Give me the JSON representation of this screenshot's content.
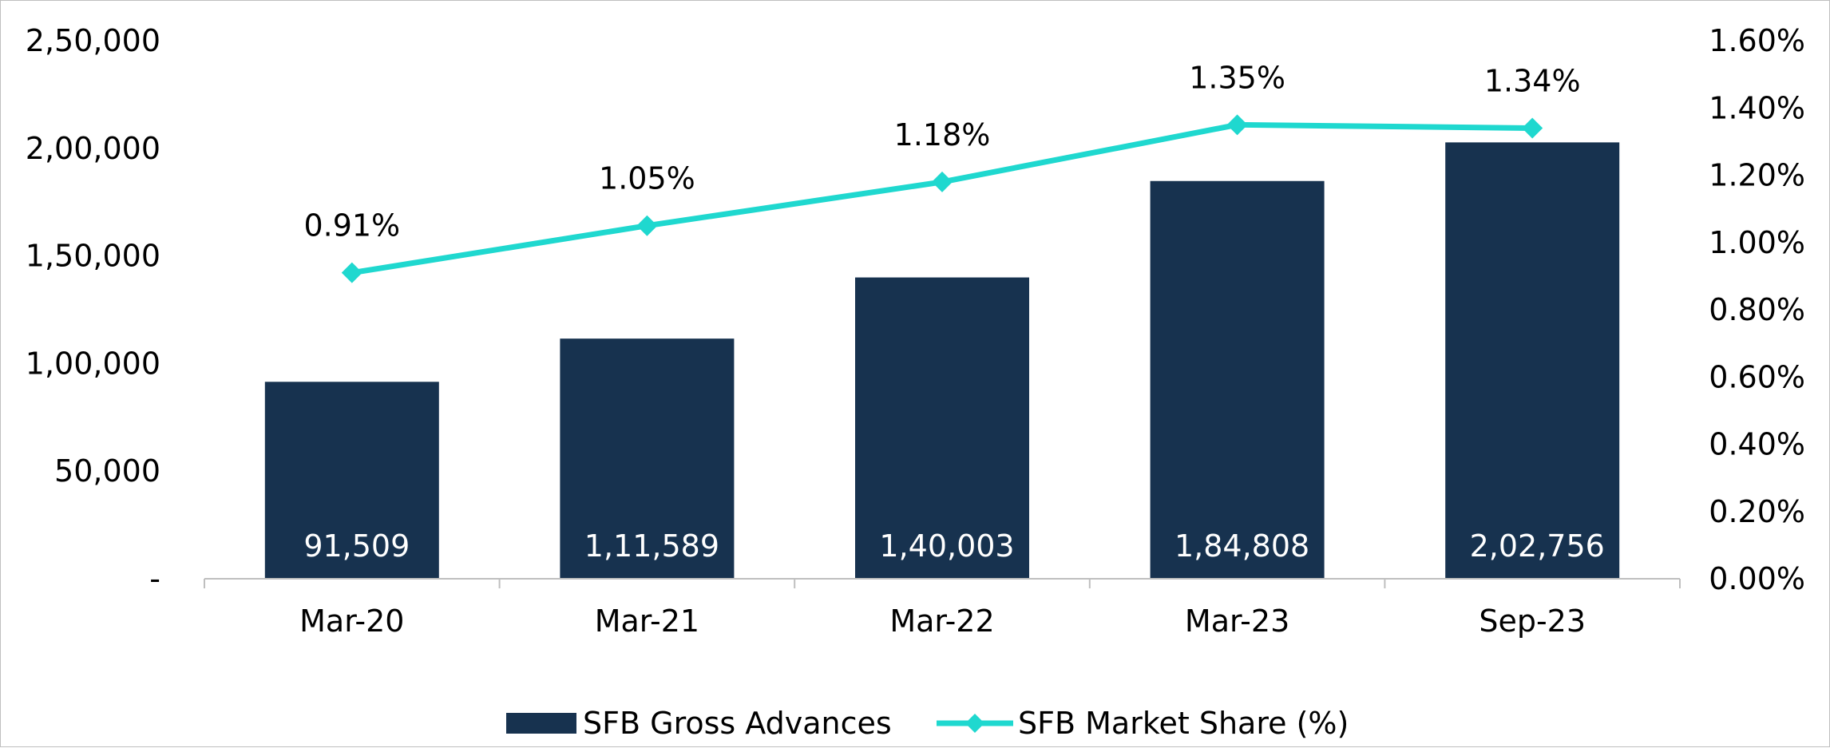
{
  "chart_data": {
    "type": "bar",
    "categories": [
      "Mar-20",
      "Mar-21",
      "Mar-22",
      "Mar-23",
      "Sep-23"
    ],
    "series": [
      {
        "name": "SFB Gross Advances",
        "type": "bar",
        "axis": "left",
        "values": [
          91509,
          111589,
          140003,
          184808,
          202756
        ],
        "labels": [
          "91,509",
          "1,11,589",
          "1,40,003",
          "1,84,808",
          "2,02,756"
        ],
        "color": "#17324f"
      },
      {
        "name": "SFB Market Share (%)",
        "type": "line",
        "axis": "right",
        "values": [
          0.91,
          1.05,
          1.18,
          1.35,
          1.34
        ],
        "labels": [
          "0.91%",
          "1.05%",
          "1.18%",
          "1.35%",
          "1.34%"
        ],
        "color": "#1fd8cf",
        "marker": "diamond"
      }
    ],
    "y_left": {
      "ylim": [
        0,
        250000
      ],
      "ticks": [
        0,
        50000,
        100000,
        150000,
        200000,
        250000
      ],
      "tick_labels": [
        "-",
        "50,000",
        "1,00,000",
        "1,50,000",
        "2,00,000",
        "2,50,000"
      ]
    },
    "y_right": {
      "ylim": [
        0,
        1.6
      ],
      "ticks": [
        0,
        0.2,
        0.4,
        0.6,
        0.8,
        1.0,
        1.2,
        1.4,
        1.6
      ],
      "tick_labels": [
        "0.00%",
        "0.20%",
        "0.40%",
        "0.60%",
        "0.80%",
        "1.00%",
        "1.20%",
        "1.40%",
        "1.60%"
      ]
    },
    "grid": false,
    "legend": "bottom-center",
    "xlabel": "",
    "ylabel": "",
    "title": ""
  }
}
